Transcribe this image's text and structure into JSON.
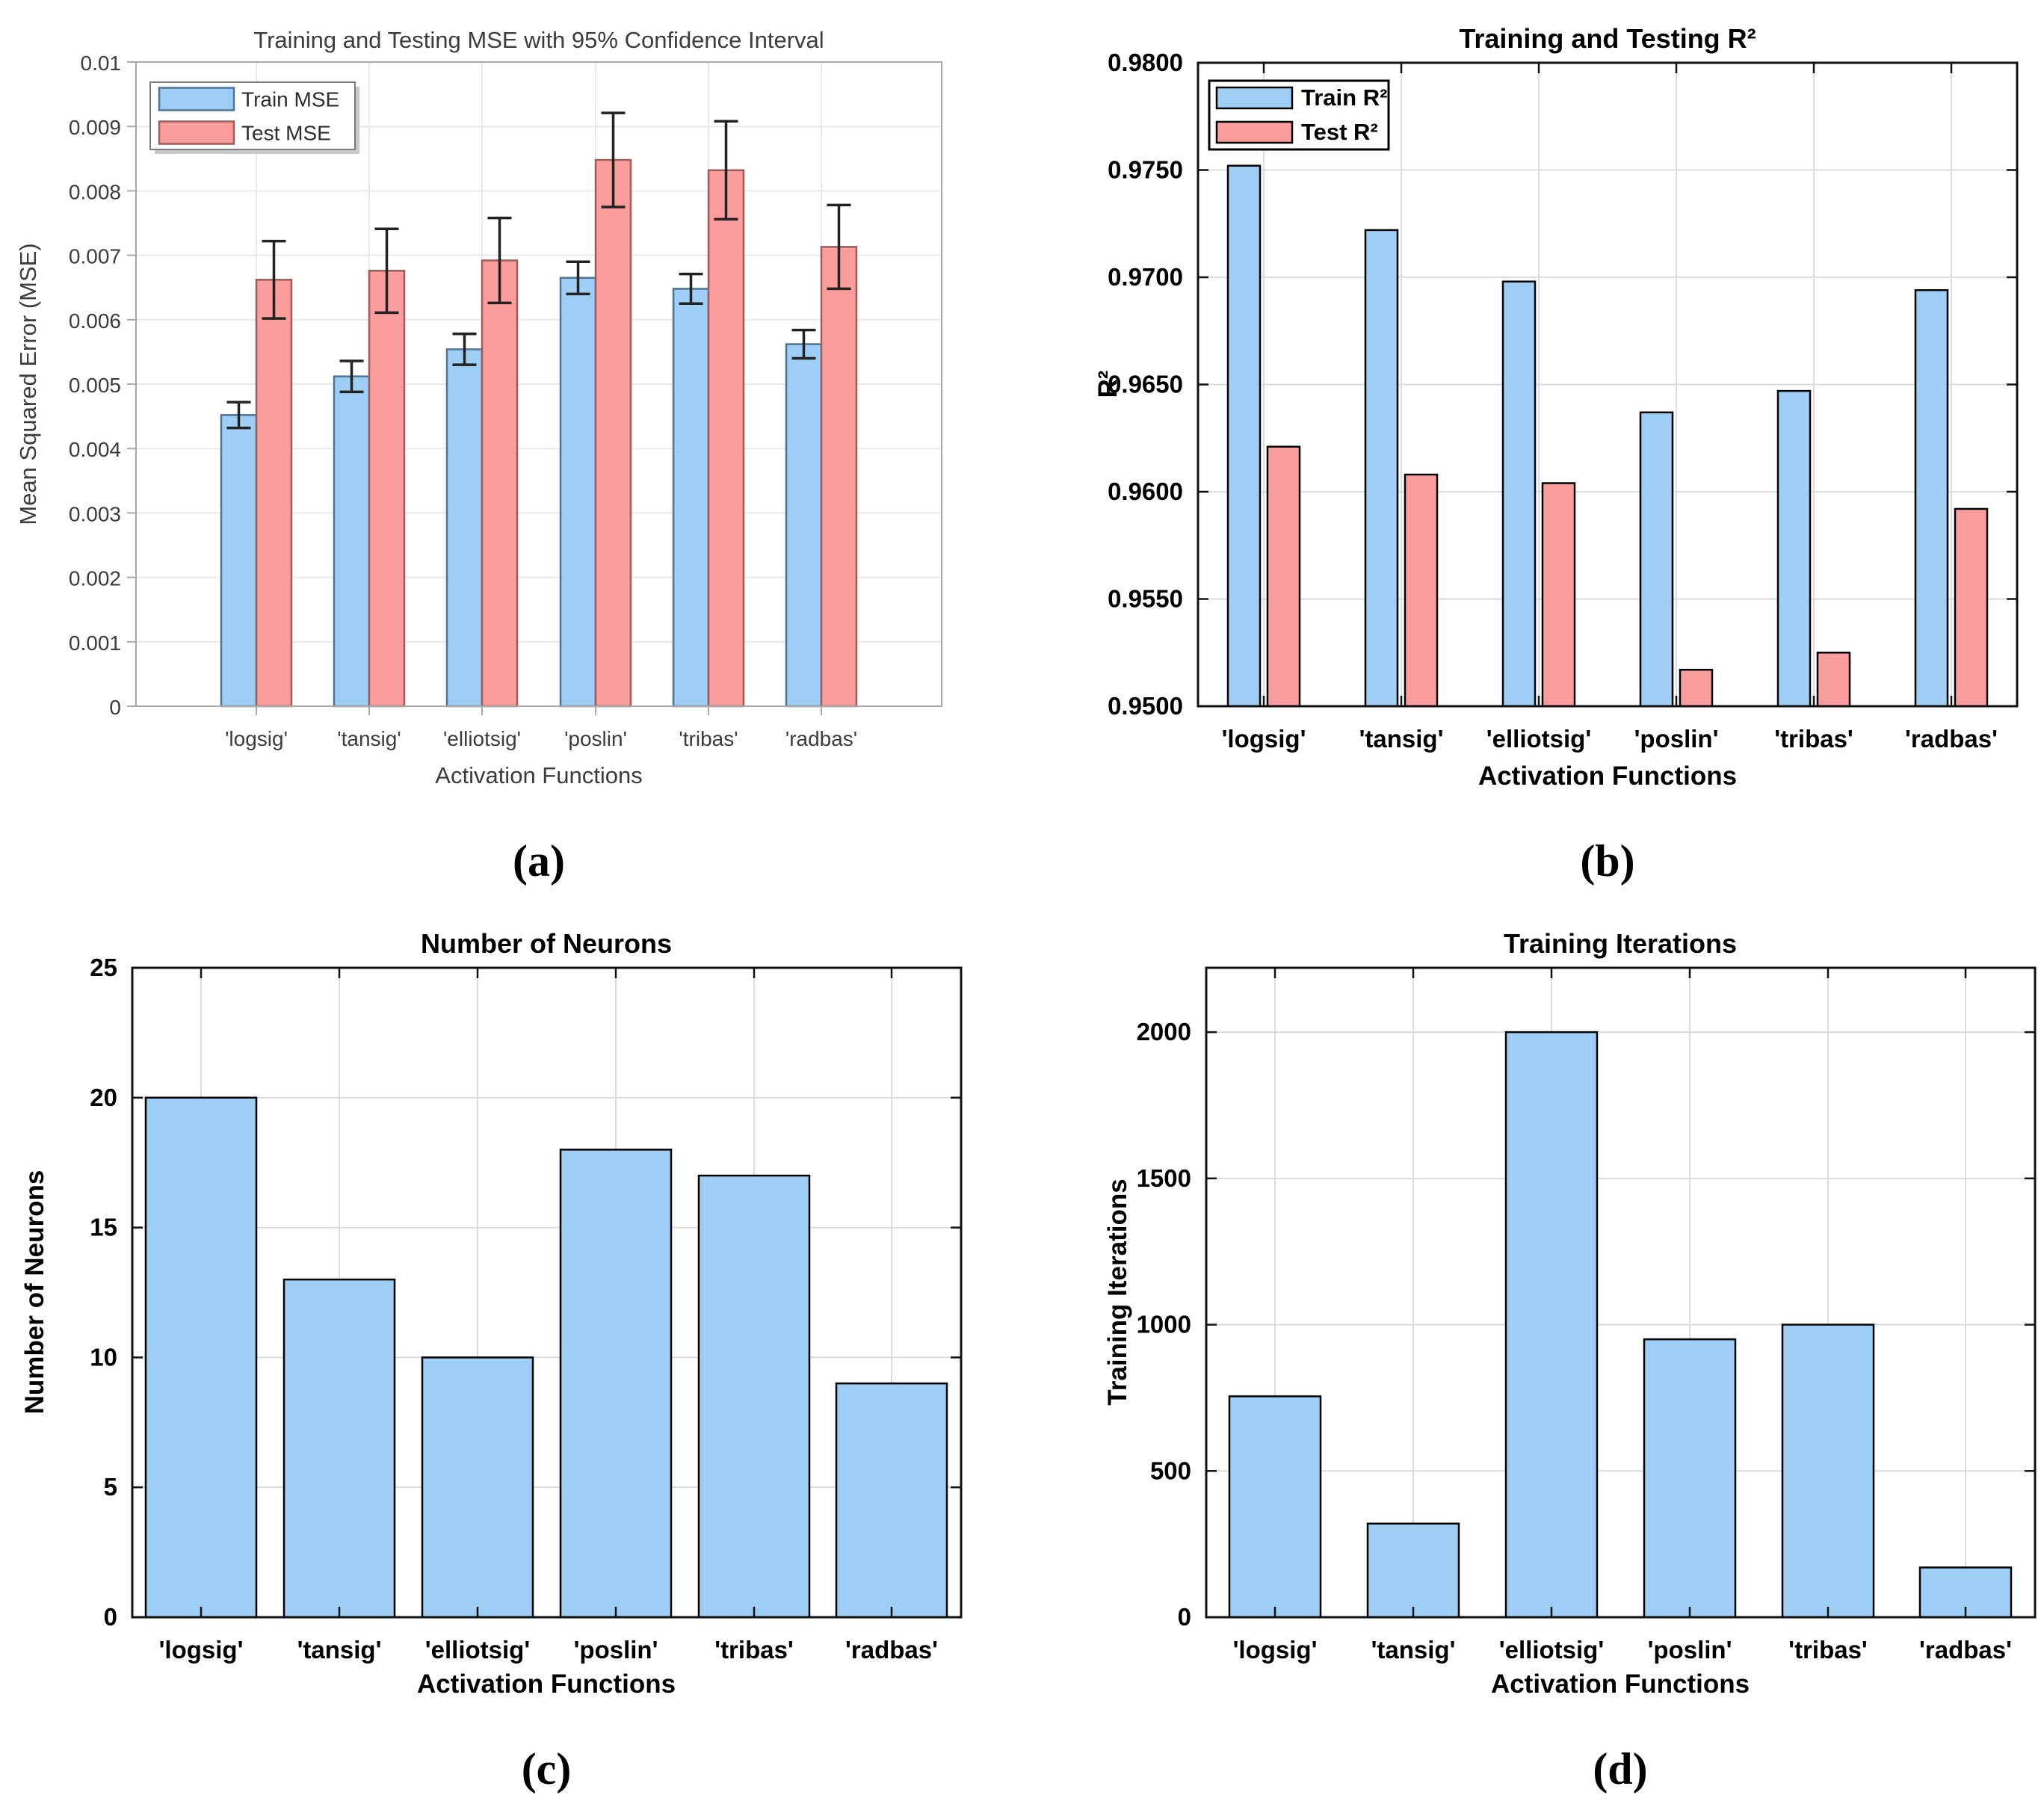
{
  "figure": {
    "captions": [
      "(a)",
      "(b)",
      "(c)",
      "(d)"
    ]
  },
  "colors": {
    "background": "#FFFFFF",
    "train_fill": "#9ECDF6",
    "test_fill": "#FB9D9D",
    "mpl_blue_edge": "#4F7396",
    "mpl_red_edge": "#9F5A5A",
    "matlab_edge": "#000000",
    "errorbar": "#222222",
    "mpl_text": "#3C3C3C",
    "mpl_spine": "#A9A9A9",
    "mpl_grid": "#E9E9E9",
    "matlab_spine": "#111111",
    "matlab_grid": "#D9D9D9",
    "legend_border_mpl": "#7A7A7A",
    "legend_shadow_mpl": "#C9C9C9",
    "legend_border_matlab": "#000000"
  },
  "chart_data": [
    {
      "panel": "a",
      "type": "bar",
      "title": "Training and Testing MSE with 95% Confidence Interval",
      "xlabel": "Activation Functions",
      "ylabel": "Mean Squared Error (MSE)",
      "categories": [
        "'logsig'",
        "'tansig'",
        "'elliotsig'",
        "'poslin'",
        "'tribas'",
        "'radbas'"
      ],
      "series": [
        {
          "name": "Train MSE",
          "values": [
            0.00452,
            0.00512,
            0.00554,
            0.00665,
            0.00648,
            0.00562
          ],
          "errors": [
            0.0002,
            0.00024,
            0.00024,
            0.00025,
            0.00023,
            0.00022
          ]
        },
        {
          "name": "Test MSE",
          "values": [
            0.00662,
            0.00676,
            0.00692,
            0.00848,
            0.00832,
            0.00713
          ],
          "errors": [
            0.0006,
            0.00065,
            0.00066,
            0.00073,
            0.00076,
            0.00065
          ]
        }
      ],
      "ylim": [
        0,
        0.01
      ],
      "yticks": [
        0,
        0.001,
        0.002,
        0.003,
        0.004,
        0.005,
        0.006,
        0.007,
        0.008,
        0.009,
        0.01
      ],
      "ytick_labels": [
        "0",
        "0.001",
        "0.002",
        "0.003",
        "0.004",
        "0.005",
        "0.006",
        "0.007",
        "0.008",
        "0.009",
        "0.01"
      ],
      "legend": {
        "position": "top-left",
        "entries": [
          "Train MSE",
          "Test MSE"
        ]
      },
      "grid": true
    },
    {
      "panel": "b",
      "type": "bar",
      "title": "Training and Testing R²",
      "xlabel": "Activation Functions",
      "ylabel": "R²",
      "categories": [
        "'logsig'",
        "'tansig'",
        "'elliotsig'",
        "'poslin'",
        "'tribas'",
        "'radbas'"
      ],
      "series": [
        {
          "name": "Train R²",
          "values": [
            0.9752,
            0.9722,
            0.9698,
            0.9637,
            0.9647,
            0.9694
          ]
        },
        {
          "name": "Test R²",
          "values": [
            0.9621,
            0.9608,
            0.9604,
            0.9517,
            0.9525,
            0.9592
          ]
        }
      ],
      "ylim": [
        0.95,
        0.98
      ],
      "yticks": [
        0.95,
        0.955,
        0.96,
        0.965,
        0.97,
        0.975,
        0.98
      ],
      "ytick_labels": [
        "0.9500",
        "0.9550",
        "0.9600",
        "0.9650",
        "0.9700",
        "0.9750",
        "0.9800"
      ],
      "legend": {
        "position": "top-left",
        "entries": [
          "Train R²",
          "Test R²"
        ]
      },
      "grid": true
    },
    {
      "panel": "c",
      "type": "bar",
      "title": "Number of Neurons",
      "xlabel": "Activation Functions",
      "ylabel": "Number of Neurons",
      "categories": [
        "'logsig'",
        "'tansig'",
        "'elliotsig'",
        "'poslin'",
        "'tribas'",
        "'radbas'"
      ],
      "series": [
        {
          "name": "Number of Neurons",
          "values": [
            20,
            13,
            10,
            18,
            17,
            9
          ]
        }
      ],
      "ylim": [
        0,
        25
      ],
      "yticks": [
        0,
        5,
        10,
        15,
        20,
        25
      ],
      "ytick_labels": [
        "0",
        "5",
        "10",
        "15",
        "20",
        "25"
      ],
      "grid": true
    },
    {
      "panel": "d",
      "type": "bar",
      "title": "Training Iterations",
      "xlabel": "Activation Functions",
      "ylabel": "Training Iterations",
      "categories": [
        "'logsig'",
        "'tansig'",
        "'elliotsig'",
        "'poslin'",
        "'tribas'",
        "'radbas'"
      ],
      "series": [
        {
          "name": "Training Iterations",
          "values": [
            755,
            320,
            2000,
            950,
            1000,
            170
          ]
        }
      ],
      "ylim": [
        0,
        2220
      ],
      "yticks": [
        0,
        500,
        1000,
        1500,
        2000
      ],
      "ytick_labels": [
        "0",
        "500",
        "1000",
        "1500",
        "2000"
      ],
      "grid": true
    }
  ]
}
